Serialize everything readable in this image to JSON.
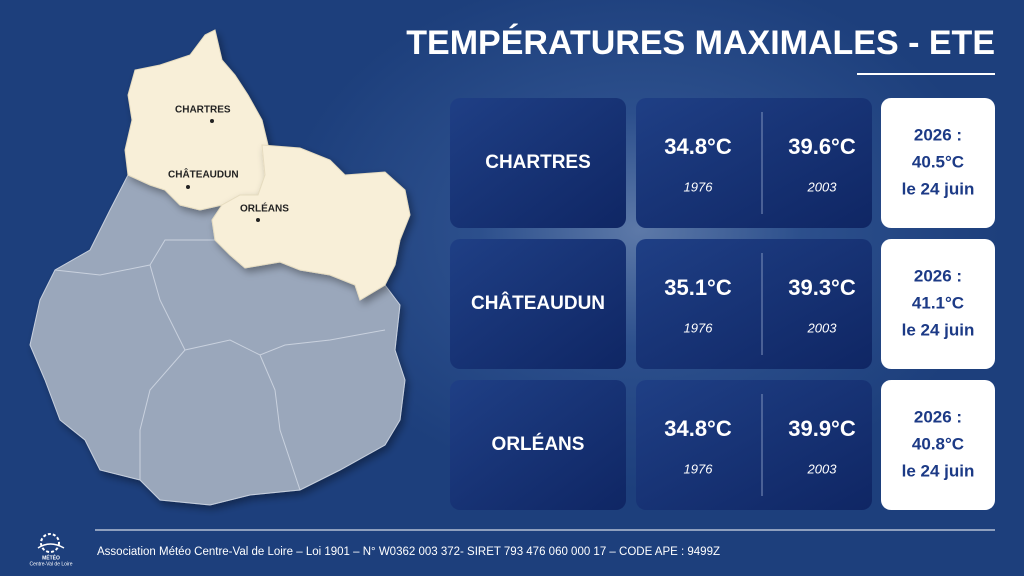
{
  "title": "TEMPÉRATURES MAXIMALES - ETE",
  "map_labels": [
    "CHARTRES",
    "CHÂTEAUDUN",
    "ORLÉANS"
  ],
  "rows": [
    {
      "city": "CHARTRES",
      "records": [
        {
          "temp": "34.8°C",
          "year": "1976"
        },
        {
          "temp": "39.6°C",
          "year": "2003"
        }
      ],
      "highlight": [
        "2026 :",
        "40.5°C",
        "le 24 juin"
      ]
    },
    {
      "city": "CHÂTEAUDUN",
      "records": [
        {
          "temp": "35.1°C",
          "year": "1976"
        },
        {
          "temp": "39.3°C",
          "year": "2003"
        }
      ],
      "highlight": [
        "2026 :",
        "41.1°C",
        "le 24 juin"
      ]
    },
    {
      "city": "ORLÉANS",
      "records": [
        {
          "temp": "34.8°C",
          "year": "1976"
        },
        {
          "temp": "39.9°C",
          "year": "2003"
        }
      ],
      "highlight": [
        "2026 :",
        "40.8°C",
        "le 24 juin"
      ]
    }
  ],
  "logo": [
    "MÉTÉO",
    "Centre-Val de Loire"
  ],
  "footer": "Association Météo Centre-Val de Loire – Loi 1901 – N° W0362 003 372- SIRET 793 476 060 000 17 – CODE APE : 9499Z"
}
